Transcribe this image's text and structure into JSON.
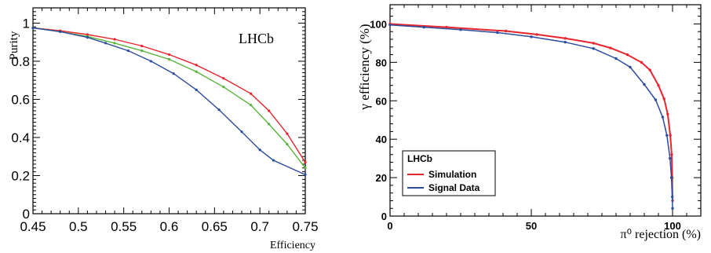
{
  "chart_data": [
    {
      "type": "line",
      "title": "",
      "xlabel": "Efficiency",
      "ylabel": "Purity",
      "annotation": "LHCb",
      "xlim": [
        0.45,
        0.75
      ],
      "ylim": [
        0,
        1.08
      ],
      "x_ticks": [
        "0.45",
        "0.5",
        "0.55",
        "0.6",
        "0.65",
        "0.7",
        "0.75"
      ],
      "y_ticks": [
        "0",
        "0.2",
        "0.4",
        "0.6",
        "0.8",
        "1"
      ],
      "grid": false,
      "legend": "none",
      "series": [
        {
          "color": "#e8242c",
          "x": [
            0.45,
            0.48,
            0.51,
            0.54,
            0.57,
            0.6,
            0.63,
            0.66,
            0.69,
            0.71,
            0.73,
            0.75
          ],
          "y": [
            0.975,
            0.96,
            0.94,
            0.915,
            0.88,
            0.835,
            0.78,
            0.71,
            0.63,
            0.54,
            0.42,
            0.27
          ]
        },
        {
          "color": "#5ab43c",
          "x": [
            0.45,
            0.48,
            0.51,
            0.54,
            0.57,
            0.6,
            0.63,
            0.66,
            0.69,
            0.71,
            0.73,
            0.75
          ],
          "y": [
            0.975,
            0.955,
            0.93,
            0.895,
            0.855,
            0.81,
            0.745,
            0.665,
            0.57,
            0.47,
            0.365,
            0.24
          ]
        },
        {
          "color": "#2c4c9c",
          "x": [
            0.45,
            0.48,
            0.51,
            0.53,
            0.555,
            0.58,
            0.605,
            0.63,
            0.655,
            0.68,
            0.7,
            0.715,
            0.75
          ],
          "y": [
            0.975,
            0.955,
            0.925,
            0.895,
            0.855,
            0.8,
            0.735,
            0.65,
            0.545,
            0.43,
            0.335,
            0.28,
            0.205
          ]
        }
      ]
    },
    {
      "type": "line",
      "title": "",
      "xlabel": "π⁰ rejection (%)",
      "ylabel": "γ efficiency (%)",
      "xlim": [
        0,
        110
      ],
      "ylim": [
        0,
        110
      ],
      "x_ticks": [
        "0",
        "50",
        "100"
      ],
      "y_ticks": [
        "0",
        "20",
        "40",
        "60",
        "80",
        "100"
      ],
      "grid": false,
      "legend": "bottom-left",
      "legend_title": "LHCb",
      "series": [
        {
          "name": "Simulation",
          "color": "#e8242c",
          "x": [
            0,
            20,
            41,
            52,
            62,
            72,
            78,
            84,
            89,
            92,
            95,
            97,
            98.3,
            99.2,
            99.7,
            99.9,
            100
          ],
          "y": [
            100,
            98.3,
            96.3,
            94.5,
            92.5,
            90,
            87.5,
            84,
            80,
            76,
            68,
            61,
            53,
            42,
            32,
            20,
            8
          ]
        },
        {
          "name": "Signal Data",
          "color": "#2c4c9c",
          "x": [
            0,
            12,
            25,
            38,
            50,
            62,
            72,
            80,
            85,
            90,
            94,
            96.5,
            98,
            99.1,
            99.6,
            99.9,
            100
          ],
          "y": [
            99.5,
            98.3,
            97,
            95.5,
            93.3,
            90.5,
            87.2,
            82,
            77.5,
            68.5,
            60.5,
            51.5,
            42,
            30,
            20,
            10,
            4
          ]
        }
      ]
    }
  ]
}
